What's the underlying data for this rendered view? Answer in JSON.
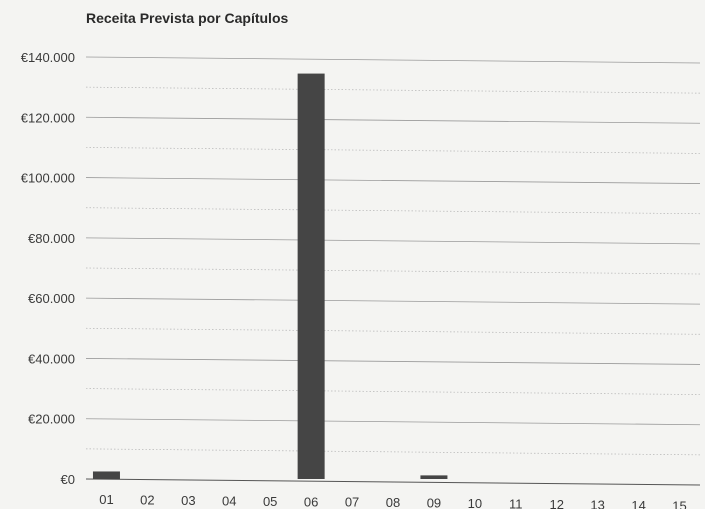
{
  "chart_data": {
    "type": "bar",
    "title": "Receita Prevista por Capítulos",
    "xlabel": "",
    "ylabel": "",
    "categories": [
      "01",
      "02",
      "03",
      "04",
      "05",
      "06",
      "07",
      "08",
      "09",
      "10",
      "11",
      "12",
      "13",
      "14",
      "15"
    ],
    "values": [
      2500,
      0,
      0,
      0,
      0,
      134500,
      0,
      0,
      1200,
      0,
      0,
      0,
      0,
      0,
      0
    ],
    "ylim": [
      0,
      140000
    ],
    "yticks": [
      0,
      20000,
      40000,
      60000,
      80000,
      100000,
      120000,
      140000
    ],
    "ytick_labels": [
      "€0",
      "€20.000",
      "€40.000",
      "€60.000",
      "€80.000",
      "€100.000",
      "€120.000",
      "€140.000"
    ],
    "grid": true,
    "legend": "none",
    "bar_color": "#454545"
  }
}
